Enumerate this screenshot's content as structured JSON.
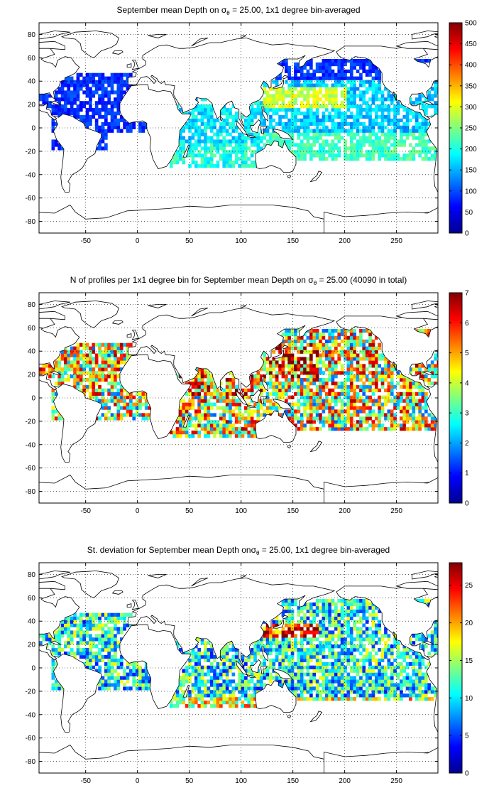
{
  "chart_data": [
    {
      "type": "heatmap",
      "title_prefix": "September mean Depth on ",
      "sigma": "σ",
      "sigma_sub": "θ",
      "title_suffix": " = 25.00, 1x1 degree bin-averaged",
      "x_ticks": [
        -50,
        0,
        50,
        100,
        150,
        200,
        250
      ],
      "y_ticks": [
        80,
        60,
        40,
        20,
        0,
        -20,
        -40,
        -60,
        -80
      ],
      "xlim": [
        -95,
        290
      ],
      "ylim": [
        -90,
        90
      ],
      "colorbar": {
        "min": 0,
        "max": 500,
        "ticks": [
          0,
          50,
          100,
          150,
          200,
          250,
          300,
          350,
          400,
          450,
          500
        ]
      },
      "grid": true
    },
    {
      "type": "heatmap",
      "title_prefix": "N of profiles per 1x1 degree bin for September mean Depth on ",
      "sigma": "σ",
      "sigma_sub": "θ",
      "title_suffix": " = 25.00 (40090 in total)",
      "x_ticks": [
        -50,
        0,
        50,
        100,
        150,
        200,
        250
      ],
      "y_ticks": [
        80,
        60,
        40,
        20,
        0,
        -20,
        -40,
        -60,
        -80
      ],
      "xlim": [
        -95,
        290
      ],
      "ylim": [
        -90,
        90
      ],
      "colorbar": {
        "min": 0,
        "max": 7,
        "ticks": [
          0,
          1,
          2,
          3,
          4,
          5,
          6,
          7
        ]
      },
      "grid": true
    },
    {
      "type": "heatmap",
      "title_prefix": "St. deviation for September mean Depth on",
      "sigma": "σ",
      "sigma_sub": "θ",
      "title_suffix": " = 25.00, 1x1 degree bin-averaged",
      "x_ticks": [
        -50,
        0,
        50,
        100,
        150,
        200,
        250
      ],
      "y_ticks": [
        80,
        60,
        40,
        20,
        0,
        -20,
        -40,
        -60,
        -80
      ],
      "xlim": [
        -95,
        290
      ],
      "ylim": [
        -90,
        90
      ],
      "colorbar": {
        "min": 0,
        "max": 28,
        "ticks": [
          0,
          5,
          10,
          15,
          20,
          25
        ]
      },
      "grid": true
    }
  ]
}
